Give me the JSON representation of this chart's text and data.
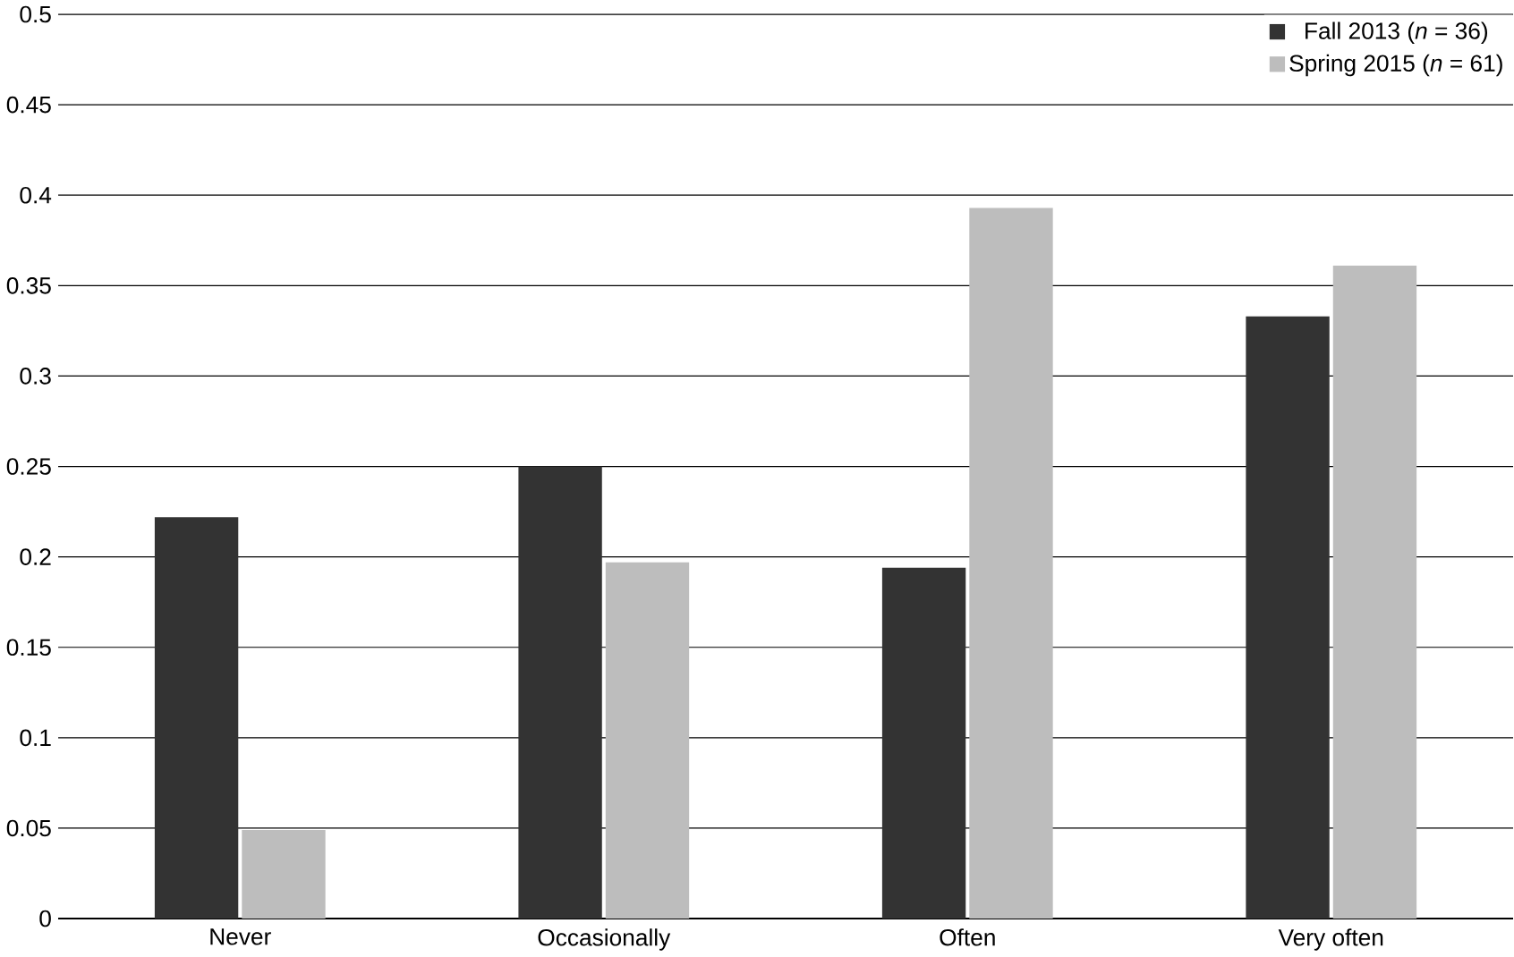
{
  "chart_data": {
    "type": "bar",
    "categories": [
      "Never",
      "Occasionally",
      "Often",
      "Very often"
    ],
    "series": [
      {
        "name": "Fall 2013 (*n* = 36)",
        "color": "#333333",
        "values": [
          0.222,
          0.25,
          0.194,
          0.333
        ]
      },
      {
        "name": "Spring 2015 (*n* = 61)",
        "color": "#bdbdbd",
        "values": [
          0.049,
          0.197,
          0.393,
          0.361
        ]
      }
    ],
    "ylim": [
      0,
      0.5
    ],
    "yticks": [
      0,
      0.05,
      0.1,
      0.15,
      0.2,
      0.25,
      0.3,
      0.35,
      0.4,
      0.45,
      0.5
    ],
    "grid": "y",
    "legend": "top right"
  }
}
